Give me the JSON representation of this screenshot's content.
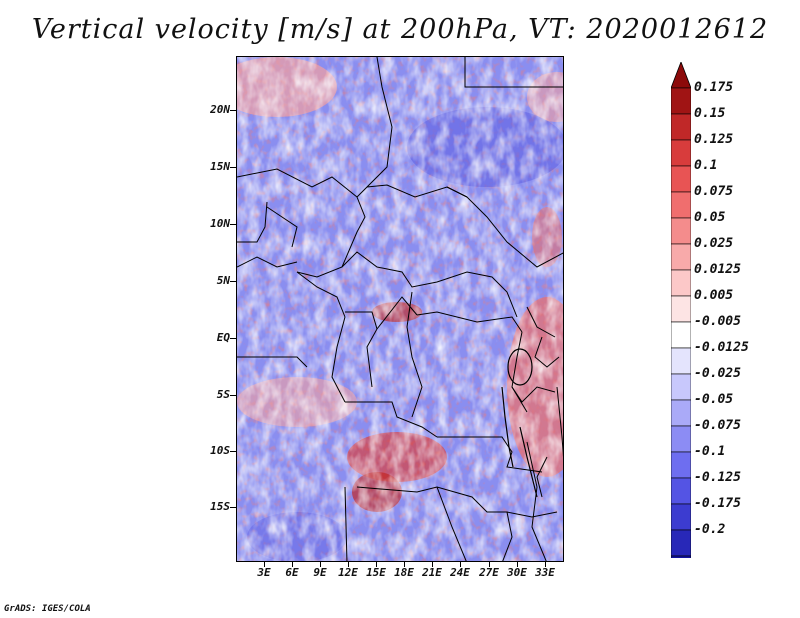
{
  "map": {
    "title": "Vertical velocity [m/s] at 200hPa, VT: 2020012612",
    "lat_labels": [
      "20N",
      "15N",
      "10N",
      "5N",
      "EQ",
      "5S",
      "10S",
      "15S"
    ],
    "lon_labels": [
      "3E",
      "6E",
      "9E",
      "12E",
      "15E",
      "18E",
      "21E",
      "24E",
      "27E",
      "30E",
      "33E"
    ]
  },
  "colorbar": {
    "levels": [
      "0.175",
      "0.15",
      "0.125",
      "0.1",
      "0.075",
      "0.05",
      "0.025",
      "0.0125",
      "0.005",
      "-0.005",
      "-0.0125",
      "-0.025",
      "-0.05",
      "-0.075",
      "-0.1",
      "-0.125",
      "-0.175",
      "-0.2"
    ],
    "colors": [
      "#a01414",
      "#c02828",
      "#d83c3c",
      "#e85454",
      "#f06e6e",
      "#f48c8c",
      "#f8aaaa",
      "#fcc8c8",
      "#fde4e4",
      "#ffffff",
      "#e4e4fd",
      "#c8c8fc",
      "#aaaaf8",
      "#8c8cf4",
      "#6e6ef0",
      "#5454e4",
      "#3c3cd0",
      "#2828b8",
      "#1414a0"
    ],
    "arrow_top_color": "#8c0a0a",
    "arrow_bottom_color": "#0a0a8c"
  },
  "footer": {
    "credit": "GrADS: IGES/COLA"
  }
}
